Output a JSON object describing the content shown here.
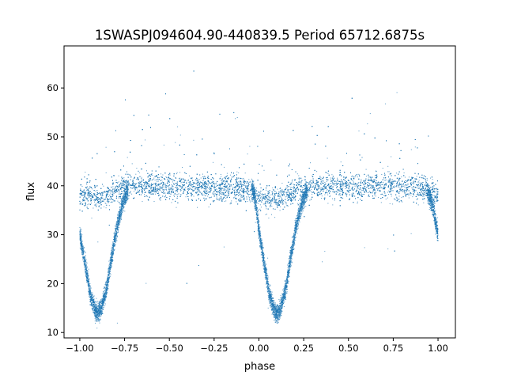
{
  "chart_data": {
    "type": "scatter",
    "title": "1SWASPJ094604.90-440839.5 Period 65712.6875s",
    "xlabel": "phase",
    "ylabel": "flux",
    "xlim": [
      -1.088,
      1.097
    ],
    "ylim": [
      8.9,
      68.6
    ],
    "xticks": [
      -1.0,
      -0.75,
      -0.5,
      -0.25,
      0.0,
      0.25,
      0.5,
      0.75,
      1.0
    ],
    "xtick_labels": [
      "−1.00",
      "−0.75",
      "−0.50",
      "−0.25",
      "0.00",
      "0.25",
      "0.50",
      "0.75",
      "1.00"
    ],
    "yticks": [
      10,
      20,
      30,
      40,
      50,
      60
    ],
    "ytick_labels": [
      "10",
      "20",
      "30",
      "40",
      "50",
      "60"
    ],
    "grid": false,
    "legend": "none",
    "marker_color": "#1f77b4",
    "series": [
      {
        "role": "baseline branch (median flux vs phase)",
        "x": [
          -1.0,
          -0.95,
          -0.9,
          -0.85,
          -0.8,
          -0.75,
          -0.7,
          -0.5,
          -0.3,
          -0.1,
          -0.05,
          0.0,
          0.05,
          0.1,
          0.15,
          0.2,
          0.3,
          0.5,
          0.7,
          0.9,
          0.95,
          1.0
        ],
        "y": [
          38.3,
          37.8,
          37.5,
          38.0,
          39.0,
          39.8,
          40.0,
          39.8,
          39.6,
          39.3,
          39.0,
          37.8,
          37.3,
          37.2,
          37.8,
          39.0,
          39.8,
          39.8,
          39.8,
          39.4,
          39.0,
          38.5
        ]
      },
      {
        "role": "eclipse branch (median flux vs phase)",
        "x": [
          -1.0,
          -0.97,
          -0.94,
          -0.91,
          -0.9,
          -0.88,
          -0.85,
          -0.82,
          -0.79,
          -0.76,
          -0.73
        ],
        "y": [
          30,
          24,
          17.5,
          14.2,
          13.8,
          14.8,
          19,
          26,
          32,
          36.5,
          39
        ]
      },
      {
        "role": "eclipse branch (median flux vs phase)",
        "x": [
          -0.04,
          -0.02,
          0.0,
          0.03,
          0.06,
          0.09,
          0.1,
          0.12,
          0.15,
          0.18,
          0.21,
          0.24,
          0.27
        ],
        "y": [
          40,
          37,
          31,
          24,
          17.5,
          14.2,
          13.8,
          14.8,
          19,
          26,
          32,
          36.5,
          39
        ]
      },
      {
        "role": "eclipse branch (median flux vs phase)",
        "x": [
          0.94,
          0.97,
          1.0
        ],
        "y": [
          39,
          36,
          30
        ]
      }
    ]
  }
}
